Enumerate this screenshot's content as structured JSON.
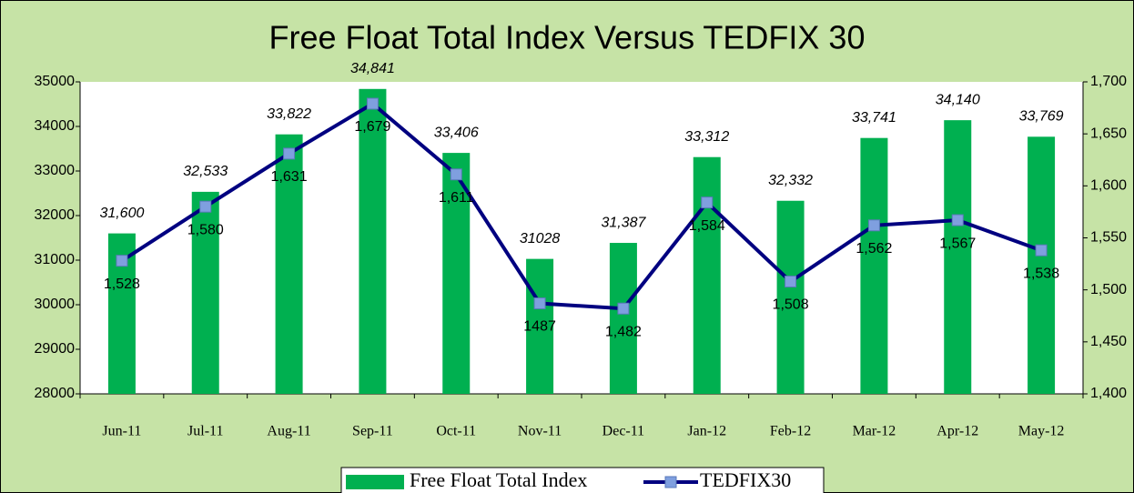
{
  "chart_data": {
    "type": "combo",
    "title": "Free Float Total Index Versus TEDFIX 30",
    "categories": [
      "Jun-11",
      "Jul-11",
      "Aug-11",
      "Sep-11",
      "Oct-11",
      "Nov-11",
      "Dec-11",
      "Jan-12",
      "Feb-12",
      "Mar-12",
      "Apr-12",
      "May-12"
    ],
    "series": [
      {
        "name": "Free Float Total Index",
        "type": "bar",
        "color": "#00b050",
        "values": [
          31600,
          32533,
          33822,
          34841,
          33406,
          31028,
          31387,
          33312,
          32332,
          33741,
          34140,
          33769
        ],
        "value_labels": [
          "31,600",
          "32,533",
          "33,822",
          "34,841",
          "33,406",
          "31028",
          "31,387",
          "33,312",
          "32,332",
          "33,741",
          "34,140",
          "33,769"
        ]
      },
      {
        "name": "TEDFIX30",
        "type": "line",
        "axis": "y2",
        "color": "#000080",
        "marker_color": "#7f9fdf",
        "values": [
          1528,
          1580,
          1631,
          1679,
          1611,
          1487,
          1482,
          1584,
          1508,
          1562,
          1567,
          1538
        ],
        "value_labels": [
          "1,528",
          "1,580",
          "1,631",
          "1,679",
          "1,611",
          "1487",
          "1,482",
          "1,584",
          "1,508",
          "1,562",
          "1,567",
          "1,538"
        ]
      }
    ],
    "ylim": [
      28000,
      35000
    ],
    "yticks": [
      28000,
      29000,
      30000,
      31000,
      32000,
      33000,
      34000,
      35000
    ],
    "y2lim": [
      1400,
      1700
    ],
    "y2ticks": [
      {
        "value": 1400,
        "label": "1,400"
      },
      {
        "value": 1450,
        "label": "1,450"
      },
      {
        "value": 1500,
        "label": "1,500"
      },
      {
        "value": 1550,
        "label": "1,550"
      },
      {
        "value": 1600,
        "label": "1,600"
      },
      {
        "value": 1650,
        "label": "1,650"
      },
      {
        "value": 1700,
        "label": "1,700"
      }
    ],
    "legend": "bottom"
  }
}
